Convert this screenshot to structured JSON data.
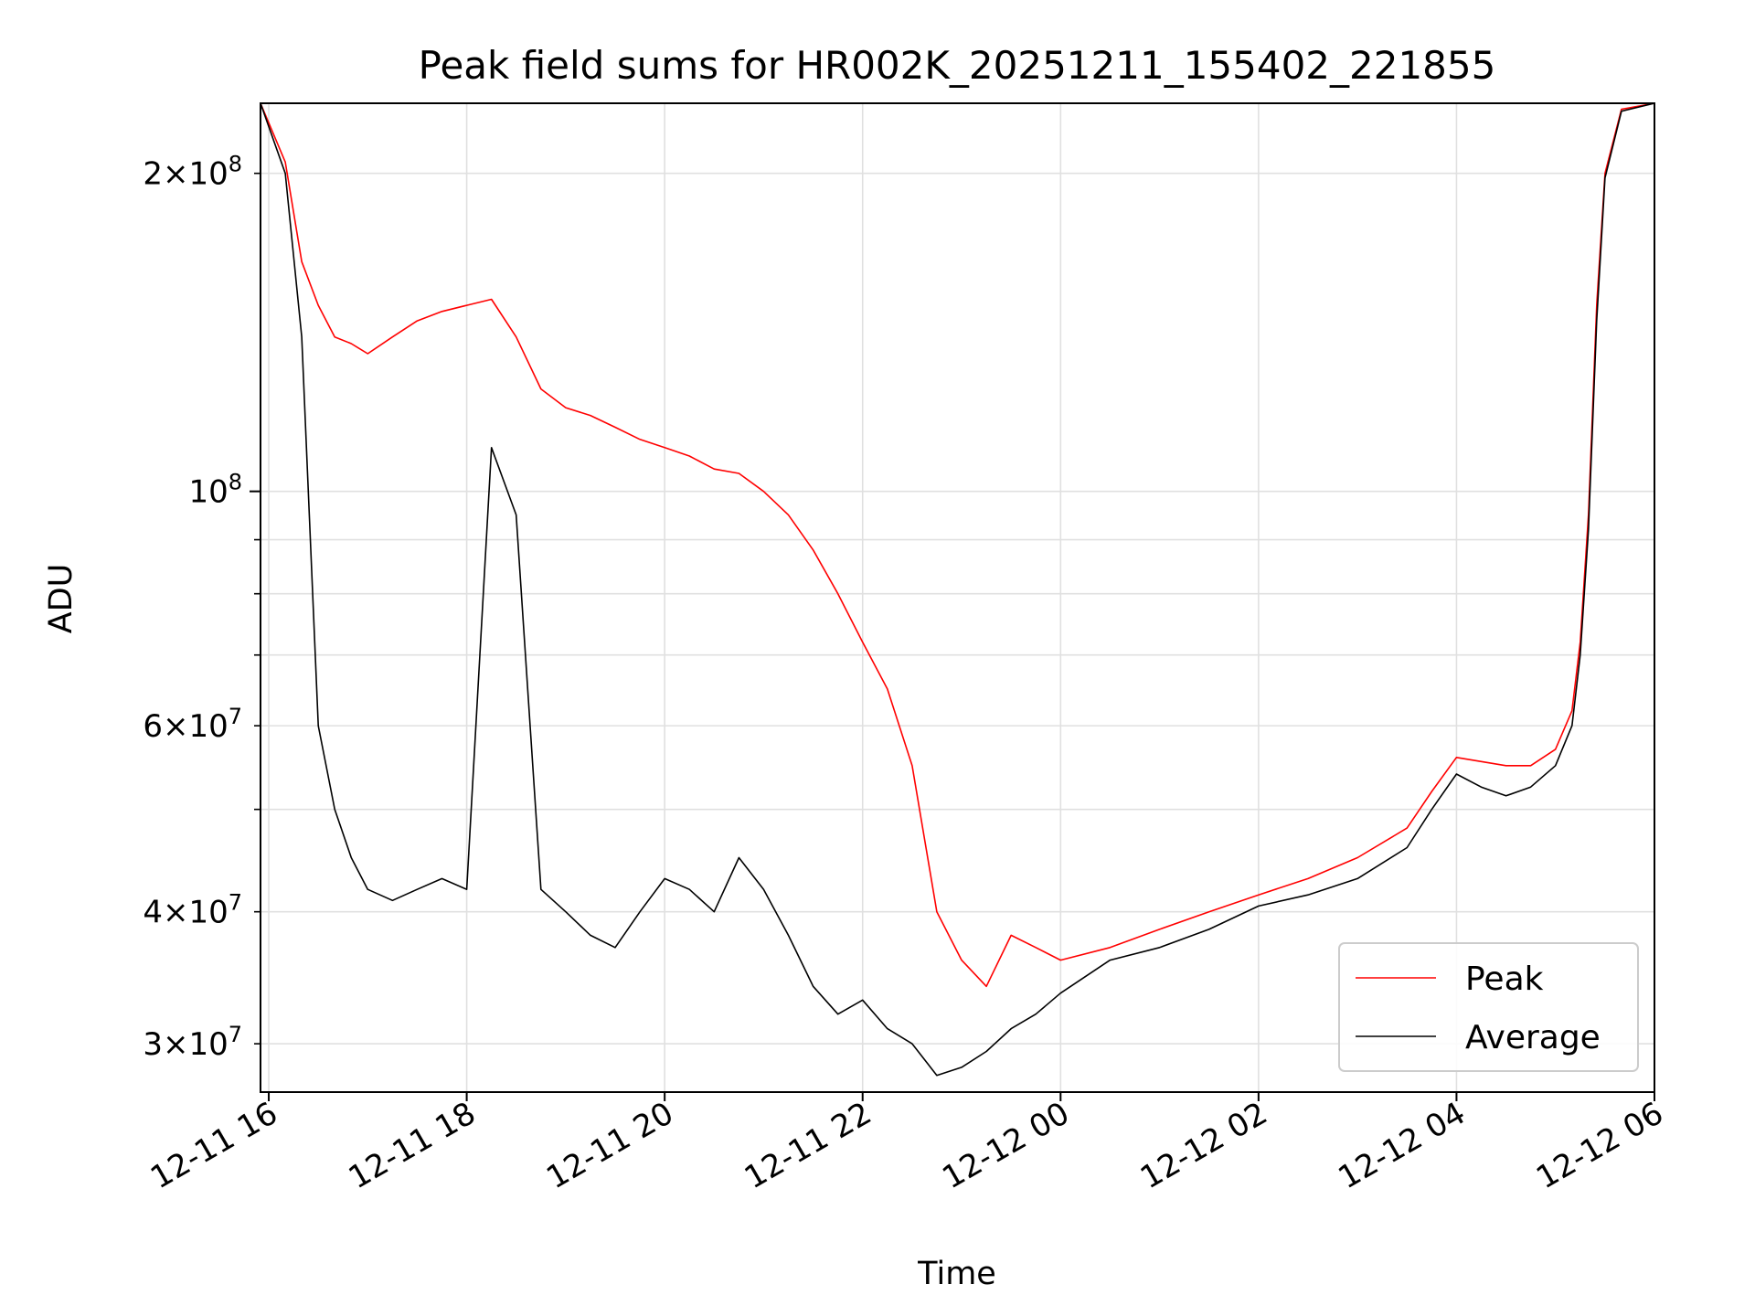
{
  "chart_data": {
    "type": "line",
    "title": "Peak field sums for HR002K_20251211_155402_221855",
    "xlabel": "Time",
    "ylabel": "ADU",
    "yscale": "log",
    "xlim": [
      "2025-12-11 15:55",
      "2025-12-12 06:00"
    ],
    "ylim": [
      27000000,
      233000000
    ],
    "grid": true,
    "legend": "lower-right",
    "x_ticks": [
      {
        "value": "2025-12-11 16:00",
        "label": "12-11 16"
      },
      {
        "value": "2025-12-11 18:00",
        "label": "12-11 18"
      },
      {
        "value": "2025-12-11 20:00",
        "label": "12-11 20"
      },
      {
        "value": "2025-12-11 22:00",
        "label": "12-11 22"
      },
      {
        "value": "2025-12-12 00:00",
        "label": "12-12 00"
      },
      {
        "value": "2025-12-12 02:00",
        "label": "12-12 02"
      },
      {
        "value": "2025-12-12 04:00",
        "label": "12-12 04"
      },
      {
        "value": "2025-12-12 06:00",
        "label": "12-12 06"
      }
    ],
    "y_major_ticks": [
      {
        "value": 100000000,
        "base": "10",
        "exp": "8"
      }
    ],
    "y_minor_ticks": [
      {
        "value": 30000000,
        "mant": "3",
        "exp": "7"
      },
      {
        "value": 40000000,
        "mant": "4",
        "exp": "7"
      },
      {
        "value": 60000000,
        "mant": "6",
        "exp": "7"
      },
      {
        "value": 200000000,
        "mant": "2",
        "exp": "8"
      }
    ],
    "y_minor_unlabeled": [
      50000000,
      70000000,
      80000000,
      90000000
    ],
    "series": [
      {
        "name": "Peak",
        "color": "#ff0000",
        "x": [
          "2025-12-11 15:55",
          "2025-12-11 16:10",
          "2025-12-11 16:20",
          "2025-12-11 16:30",
          "2025-12-11 16:40",
          "2025-12-11 16:50",
          "2025-12-11 17:00",
          "2025-12-11 17:15",
          "2025-12-11 17:30",
          "2025-12-11 17:45",
          "2025-12-11 18:00",
          "2025-12-11 18:15",
          "2025-12-11 18:30",
          "2025-12-11 18:45",
          "2025-12-11 19:00",
          "2025-12-11 19:15",
          "2025-12-11 19:30",
          "2025-12-11 19:45",
          "2025-12-11 20:00",
          "2025-12-11 20:15",
          "2025-12-11 20:30",
          "2025-12-11 20:45",
          "2025-12-11 21:00",
          "2025-12-11 21:15",
          "2025-12-11 21:30",
          "2025-12-11 21:45",
          "2025-12-11 22:00",
          "2025-12-11 22:15",
          "2025-12-11 22:30",
          "2025-12-11 22:45",
          "2025-12-11 23:00",
          "2025-12-11 23:15",
          "2025-12-11 23:30",
          "2025-12-11 23:45",
          "2025-12-12 00:00",
          "2025-12-12 00:30",
          "2025-12-12 01:00",
          "2025-12-12 01:30",
          "2025-12-12 02:00",
          "2025-12-12 02:30",
          "2025-12-12 03:00",
          "2025-12-12 03:30",
          "2025-12-12 03:45",
          "2025-12-12 04:00",
          "2025-12-12 04:15",
          "2025-12-12 04:30",
          "2025-12-12 04:45",
          "2025-12-12 05:00",
          "2025-12-12 05:10",
          "2025-12-12 05:15",
          "2025-12-12 05:20",
          "2025-12-12 05:25",
          "2025-12-12 05:30",
          "2025-12-12 05:40",
          "2025-12-12 06:00"
        ],
        "y": [
          233000000,
          205000000,
          165000000,
          150000000,
          140000000,
          138000000,
          135000000,
          140000000,
          145000000,
          148000000,
          150000000,
          152000000,
          140000000,
          125000000,
          120000000,
          118000000,
          115000000,
          112000000,
          110000000,
          108000000,
          105000000,
          104000000,
          100000000,
          95000000,
          88000000,
          80000000,
          72000000,
          65000000,
          55000000,
          40000000,
          36000000,
          34000000,
          38000000,
          37000000,
          36000000,
          37000000,
          38500000,
          40000000,
          41500000,
          43000000,
          45000000,
          48000000,
          52000000,
          56000000,
          55500000,
          55000000,
          55000000,
          57000000,
          62000000,
          72000000,
          95000000,
          150000000,
          200000000,
          230000000,
          233000000
        ]
      },
      {
        "name": "Average",
        "color": "#000000",
        "x": [
          "2025-12-11 15:55",
          "2025-12-11 16:10",
          "2025-12-11 16:20",
          "2025-12-11 16:30",
          "2025-12-11 16:40",
          "2025-12-11 16:50",
          "2025-12-11 17:00",
          "2025-12-11 17:15",
          "2025-12-11 17:30",
          "2025-12-11 17:45",
          "2025-12-11 18:00",
          "2025-12-11 18:15",
          "2025-12-11 18:30",
          "2025-12-11 18:45",
          "2025-12-11 19:00",
          "2025-12-11 19:15",
          "2025-12-11 19:30",
          "2025-12-11 19:45",
          "2025-12-11 20:00",
          "2025-12-11 20:15",
          "2025-12-11 20:30",
          "2025-12-11 20:45",
          "2025-12-11 21:00",
          "2025-12-11 21:15",
          "2025-12-11 21:30",
          "2025-12-11 21:45",
          "2025-12-11 22:00",
          "2025-12-11 22:15",
          "2025-12-11 22:30",
          "2025-12-11 22:45",
          "2025-12-11 23:00",
          "2025-12-11 23:15",
          "2025-12-11 23:30",
          "2025-12-11 23:45",
          "2025-12-12 00:00",
          "2025-12-12 00:30",
          "2025-12-12 01:00",
          "2025-12-12 01:30",
          "2025-12-12 02:00",
          "2025-12-12 02:30",
          "2025-12-12 03:00",
          "2025-12-12 03:30",
          "2025-12-12 03:45",
          "2025-12-12 04:00",
          "2025-12-12 04:15",
          "2025-12-12 04:30",
          "2025-12-12 04:45",
          "2025-12-12 05:00",
          "2025-12-12 05:10",
          "2025-12-12 05:15",
          "2025-12-12 05:20",
          "2025-12-12 05:25",
          "2025-12-12 05:30",
          "2025-12-12 05:40",
          "2025-12-12 06:00"
        ],
        "y": [
          233000000,
          200000000,
          140000000,
          60000000,
          50000000,
          45000000,
          42000000,
          41000000,
          42000000,
          43000000,
          42000000,
          110000000,
          95000000,
          42000000,
          40000000,
          38000000,
          37000000,
          40000000,
          43000000,
          42000000,
          40000000,
          45000000,
          42000000,
          38000000,
          34000000,
          32000000,
          33000000,
          31000000,
          30000000,
          28000000,
          28500000,
          29500000,
          31000000,
          32000000,
          33500000,
          36000000,
          37000000,
          38500000,
          40500000,
          41500000,
          43000000,
          46000000,
          50000000,
          54000000,
          52500000,
          51500000,
          52500000,
          55000000,
          60000000,
          70000000,
          92000000,
          145000000,
          198000000,
          229000000,
          233000000
        ]
      }
    ]
  }
}
